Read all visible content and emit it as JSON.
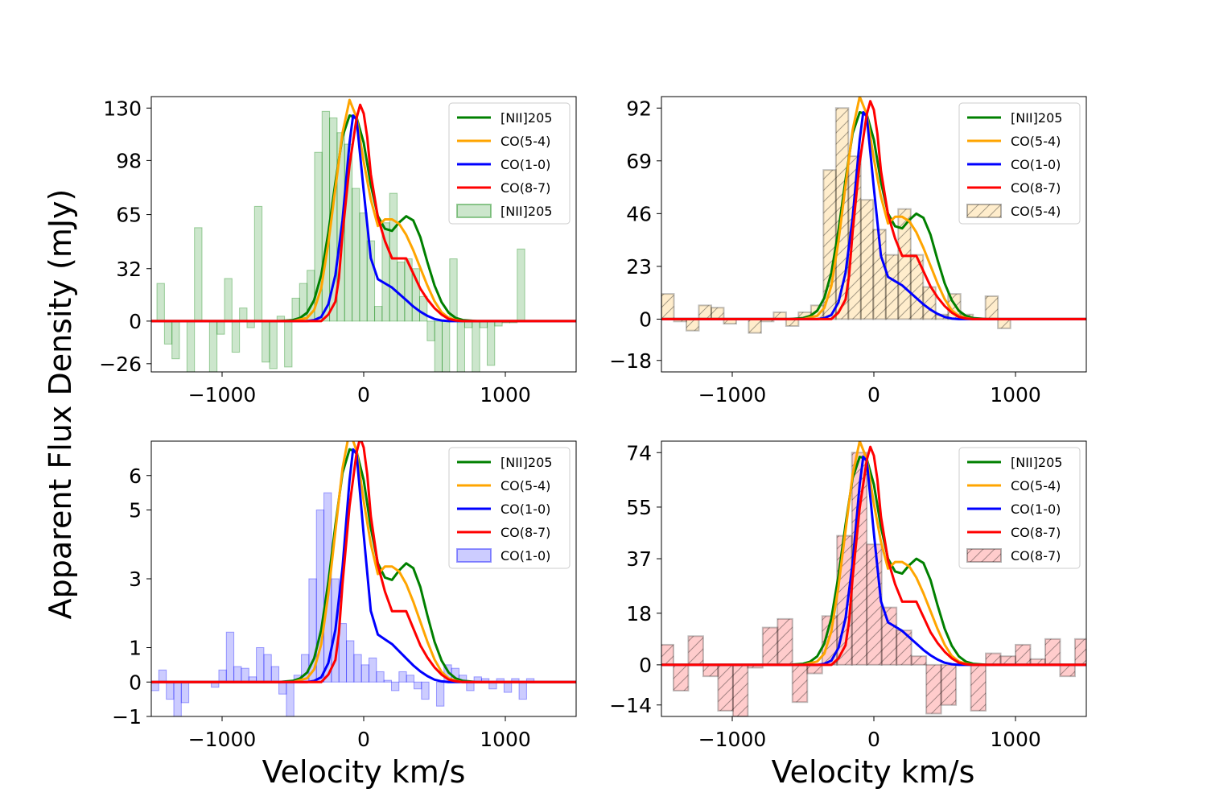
{
  "figure": {
    "ylabel": "Apparent Flux Density  (mJy)",
    "xlabel": "Velocity  km/s"
  },
  "colors": {
    "NII205": "#008000",
    "CO54": "#ffa500",
    "CO10": "#0000ff",
    "CO87": "#ff0000"
  },
  "chart_data": [
    {
      "type": "bar+line",
      "panel": "top-left",
      "hist_label": "[NII]205",
      "hist_style": {
        "fill": "#008000",
        "alpha": 0.2,
        "hatch": false
      },
      "xlim": [
        -1500,
        1500
      ],
      "ylim": [
        -31,
        137
      ],
      "xticks": [
        -1000,
        0,
        1000
      ],
      "xtick_labels": [
        "−1000",
        "0",
        "1000"
      ],
      "yticks": [
        -26,
        0,
        32,
        65,
        98,
        130
      ],
      "ytick_labels": [
        "−26",
        "0",
        "32",
        "65",
        "98",
        "130"
      ],
      "legend": [
        "[NII]205",
        "CO(5-4)",
        "CO(1-0)",
        "CO(8-7)",
        "[NII]205"
      ],
      "bin_width": 53,
      "bins_start": -1460,
      "hist_values": [
        23,
        -14,
        -23,
        0,
        -31,
        57,
        0,
        -31,
        -8,
        26,
        -19,
        8,
        -4,
        70,
        -25,
        -29,
        3,
        -28,
        14,
        23,
        31,
        103,
        128,
        124,
        115,
        108,
        81,
        66,
        49,
        9,
        60,
        78,
        36,
        38,
        32,
        15,
        -12,
        -33,
        -33,
        38,
        -33,
        -4,
        -31,
        -4,
        -27,
        -3,
        -1,
        -1,
        44,
        0
      ]
    },
    {
      "type": "bar+line",
      "panel": "top-right",
      "hist_label": "CO(5-4)",
      "hist_style": {
        "fill": "#ffa500",
        "alpha": 0.2,
        "hatch": true
      },
      "xlim": [
        -1500,
        1500
      ],
      "ylim": [
        -23,
        97
      ],
      "xticks": [
        -1000,
        0,
        1000
      ],
      "xtick_labels": [
        "−1000",
        "0",
        "1000"
      ],
      "yticks": [
        -18,
        0,
        23,
        46,
        69,
        92
      ],
      "ytick_labels": [
        "−18",
        "0",
        "23",
        "46",
        "69",
        "92"
      ],
      "legend": [
        "[NII]205",
        "CO(5-4)",
        "CO(1-0)",
        "CO(8-7)",
        "CO(5-4)"
      ],
      "bin_width": 88,
      "bins_start": -1500,
      "hist_values": [
        11,
        -1,
        -5,
        6,
        5,
        -2,
        0,
        -6,
        -1,
        3,
        -3,
        3,
        6,
        65,
        92,
        71,
        52,
        39,
        28,
        48,
        28,
        14,
        2,
        11,
        2,
        0,
        10,
        -4,
        0,
        0,
        0,
        0,
        0,
        0
      ]
    },
    {
      "type": "bar+line",
      "panel": "bottom-left",
      "hist_label": "CO(1-0)",
      "hist_style": {
        "fill": "#0000ff",
        "alpha": 0.2,
        "hatch": false
      },
      "xlim": [
        -1500,
        1500
      ],
      "ylim": [
        -1,
        7
      ],
      "xticks": [
        -1000,
        0,
        1000
      ],
      "xtick_labels": [
        "−1000",
        "0",
        "1000"
      ],
      "yticks": [
        -1,
        0,
        1,
        3,
        5,
        6
      ],
      "ytick_labels": [
        "−1",
        "0",
        "1",
        "3",
        "5",
        "6"
      ],
      "legend": [
        "[NII]205",
        "CO(5-4)",
        "CO(1-0)",
        "CO(8-7)",
        "CO(1-0)"
      ],
      "bin_width": 53,
      "bins_start": -1500,
      "hist_values": [
        -0.25,
        0.35,
        -0.5,
        -1.0,
        -0.6,
        0.0,
        0.0,
        0.0,
        -0.15,
        0.35,
        1.45,
        0.45,
        0.4,
        0.15,
        1.0,
        0.8,
        0.45,
        -0.35,
        -1.0,
        0.2,
        0.8,
        3.0,
        5.0,
        5.5,
        3.0,
        1.7,
        1.2,
        0.8,
        0.5,
        0.7,
        0.3,
        0.05,
        -0.25,
        0.3,
        0.2,
        -0.2,
        -0.5,
        0.0,
        -0.7,
        0.5,
        0.4,
        0.2,
        -0.25,
        0.15,
        0.1,
        -0.2,
        0.1,
        -0.3,
        0.1,
        -0.5,
        0.1
      ]
    },
    {
      "type": "bar+line",
      "panel": "bottom-right",
      "hist_label": "CO(8-7)",
      "hist_style": {
        "fill": "#ff0000",
        "alpha": 0.2,
        "hatch": true
      },
      "xlim": [
        -1500,
        1500
      ],
      "ylim": [
        -18,
        78
      ],
      "xticks": [
        -1000,
        0,
        1000
      ],
      "xtick_labels": [
        "−1000",
        "0",
        "1000"
      ],
      "yticks": [
        -14,
        0,
        18,
        37,
        55,
        74
      ],
      "ytick_labels": [
        "−14",
        "0",
        "18",
        "37",
        "55",
        "74"
      ],
      "legend": [
        "[NII]205",
        "CO(5-4)",
        "CO(1-0)",
        "CO(8-7)",
        "CO(8-7)"
      ],
      "bin_width": 105,
      "bins_start": -1520,
      "hist_values": [
        7,
        -9,
        10,
        -4,
        -16,
        -18,
        -1,
        13,
        16,
        -13,
        -3,
        17,
        45,
        74,
        42,
        20,
        12,
        3,
        -17,
        -14,
        0,
        -16,
        4,
        3,
        7,
        2,
        9,
        -4,
        9
      ]
    }
  ],
  "line_series": [
    {
      "name": "[NII]205",
      "color": "#008000",
      "x": [
        -1500,
        -600,
        -500,
        -450,
        -400,
        -350,
        -300,
        -250,
        -200,
        -150,
        -100,
        -50,
        0,
        50,
        100,
        150,
        200,
        250,
        300,
        350,
        400,
        450,
        500,
        550,
        600,
        650,
        700,
        800,
        1500
      ],
      "y_frac": [
        0,
        0,
        0.005,
        0.015,
        0.04,
        0.1,
        0.22,
        0.42,
        0.66,
        0.88,
        0.98,
        0.97,
        0.85,
        0.65,
        0.5,
        0.44,
        0.43,
        0.47,
        0.5,
        0.48,
        0.4,
        0.28,
        0.17,
        0.09,
        0.04,
        0.015,
        0.005,
        0,
        0
      ]
    },
    {
      "name": "CO(5-4)",
      "color": "#ffa500",
      "x": [
        -1500,
        -500,
        -400,
        -350,
        -300,
        -250,
        -200,
        -150,
        -100,
        -50,
        0,
        50,
        100,
        150,
        200,
        250,
        300,
        350,
        400,
        450,
        500,
        550,
        600,
        650,
        700,
        800,
        1500
      ],
      "y_frac": [
        0,
        0,
        0.015,
        0.05,
        0.15,
        0.35,
        0.6,
        0.85,
        1.0,
        0.92,
        0.72,
        0.55,
        0.43,
        0.46,
        0.46,
        0.44,
        0.39,
        0.32,
        0.24,
        0.16,
        0.09,
        0.04,
        0.015,
        0.005,
        0,
        0,
        0
      ]
    },
    {
      "name": "CO(1-0)",
      "color": "#0000ff",
      "x": [
        -1500,
        -400,
        -350,
        -300,
        -250,
        -200,
        -150,
        -100,
        -75,
        -50,
        0,
        50,
        100,
        150,
        200,
        250,
        300,
        350,
        400,
        450,
        500,
        550,
        600,
        700,
        1500
      ],
      "y_frac": [
        0,
        0,
        0.005,
        0.02,
        0.08,
        0.22,
        0.48,
        0.85,
        0.98,
        0.96,
        0.62,
        0.3,
        0.2,
        0.18,
        0.16,
        0.13,
        0.1,
        0.07,
        0.045,
        0.025,
        0.01,
        0.003,
        0,
        0,
        0
      ]
    },
    {
      "name": "CO(8-7)",
      "color": "#ff0000",
      "x": [
        -1500,
        -300,
        -250,
        -200,
        -175,
        -150,
        -100,
        -50,
        -25,
        0,
        25,
        50,
        100,
        150,
        200,
        250,
        300,
        350,
        400,
        450,
        500,
        550,
        600,
        650,
        700,
        1500
      ],
      "y_frac": [
        0,
        0,
        0.03,
        0.09,
        0.2,
        0.4,
        0.72,
        0.94,
        1.0,
        0.96,
        0.85,
        0.68,
        0.48,
        0.37,
        0.29,
        0.29,
        0.29,
        0.22,
        0.15,
        0.1,
        0.06,
        0.03,
        0.01,
        0.003,
        0,
        0
      ]
    }
  ],
  "line_peaks": [
    {
      "NII205": 128,
      "CO54": 135,
      "CO10": 128,
      "CO87": 132
    },
    {
      "NII205": 92,
      "CO54": 97,
      "CO10": 92,
      "CO87": 95
    },
    {
      "NII205": 6.9,
      "CO54": 7.3,
      "CO10": 6.9,
      "CO87": 7.1
    },
    {
      "NII205": 74,
      "CO54": 78,
      "CO10": 74,
      "CO87": 76
    }
  ]
}
